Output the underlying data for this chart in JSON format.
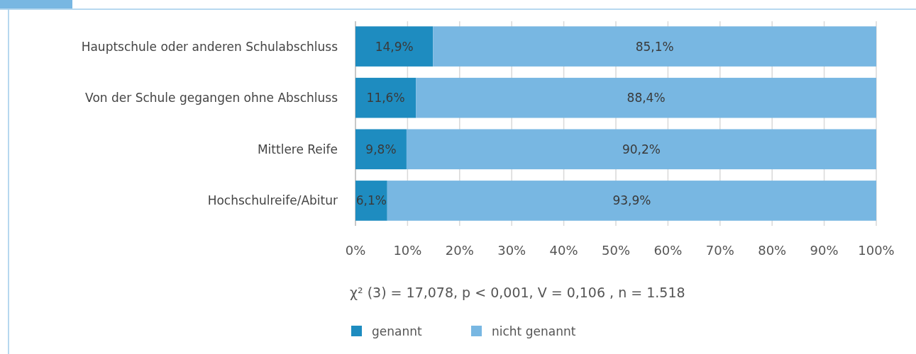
{
  "chart_data": {
    "type": "bar",
    "orientation": "horizontal",
    "stacked": true,
    "categories": [
      "Hauptschule oder anderen Schulabschluss",
      "Von der Schule gegangen ohne Abschluss",
      "Mittlere Reife",
      "Hochschulreife/Abitur"
    ],
    "series": [
      {
        "name": "genannt",
        "color": "#1e8cc0",
        "values": [
          14.9,
          11.6,
          9.8,
          6.1
        ],
        "value_labels": [
          "14,9%",
          "11,6%",
          "9,8%",
          "6,1%"
        ]
      },
      {
        "name": "nicht genannt",
        "color": "#78b7e2",
        "values": [
          85.1,
          88.4,
          90.2,
          93.9
        ],
        "value_labels": [
          "85,1%",
          "88,4%",
          "90,2%",
          "93,9%"
        ]
      }
    ],
    "xlim": [
      0,
      100
    ],
    "xticks": [
      {
        "value": 0,
        "label": "0%"
      },
      {
        "value": 10,
        "label": "10%"
      },
      {
        "value": 20,
        "label": "20%"
      },
      {
        "value": 30,
        "label": "30%"
      },
      {
        "value": 40,
        "label": "40%"
      },
      {
        "value": 50,
        "label": "50%"
      },
      {
        "value": 60,
        "label": "60%"
      },
      {
        "value": 70,
        "label": "70%"
      },
      {
        "value": 80,
        "label": "80%"
      },
      {
        "value": 90,
        "label": "90%"
      },
      {
        "value": 100,
        "label": "100%"
      }
    ],
    "grid": "x",
    "legend": "bottom",
    "annotations": [
      "χ² (3) = 17,078, p < 0,001, V = 0,106 , n = 1.518"
    ]
  }
}
